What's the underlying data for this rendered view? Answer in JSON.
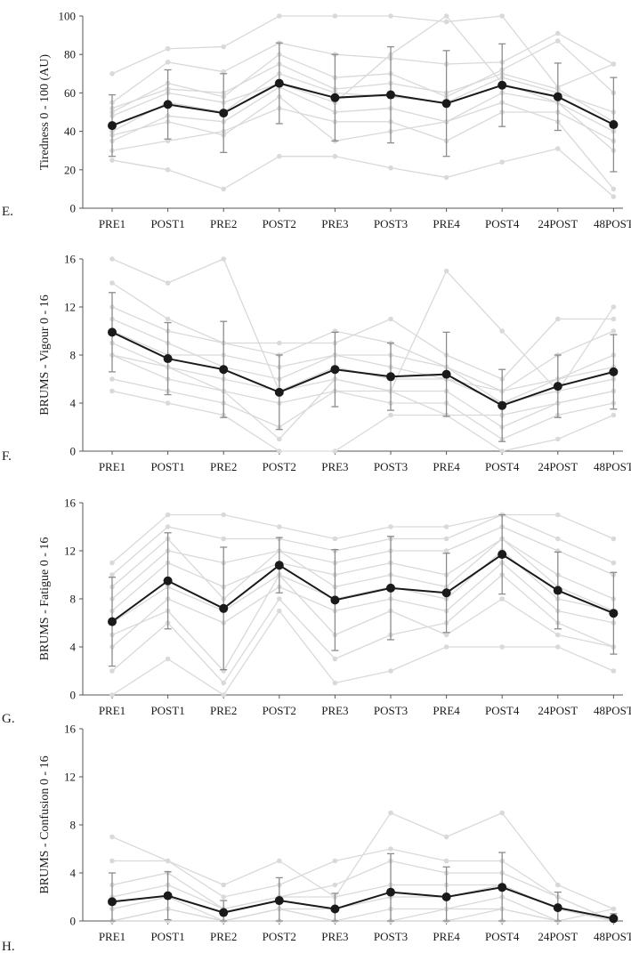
{
  "colors": {
    "individual": "#d9d9d9",
    "mean": "#1a1a1a",
    "error_bar": "#8c8c8c",
    "axis": "#555555"
  },
  "chart_data": [
    {
      "type": "line",
      "panel_label": "E.",
      "ylabel": "Tiredness 0 - 100 (AU)",
      "ylim": [
        0,
        100
      ],
      "yticks": [
        0,
        20,
        40,
        60,
        80,
        100
      ],
      "categories": [
        "PRE1",
        "POST1",
        "PRE2",
        "POST2",
        "PRE3",
        "POST3",
        "PRE4",
        "POST4",
        "24POST",
        "48POST"
      ],
      "mean": [
        43,
        54,
        49.5,
        65,
        57.5,
        59,
        54.5,
        64,
        58,
        43.5
      ],
      "sd": [
        16,
        18,
        20.5,
        21,
        22.5,
        25,
        27.5,
        21.5,
        17.5,
        24.5
      ],
      "individuals": [
        [
          70,
          83,
          84,
          100,
          100,
          100,
          97,
          100,
          63,
          75
        ],
        [
          55,
          76,
          71,
          86,
          80,
          78,
          75,
          76,
          91,
          75
        ],
        [
          50,
          65,
          58,
          80,
          68,
          70,
          58,
          72,
          87,
          60
        ],
        [
          40,
          55,
          50,
          70,
          60,
          58,
          55,
          68,
          60,
          50
        ],
        [
          35,
          48,
          45,
          63,
          50,
          52,
          45,
          60,
          55,
          40
        ],
        [
          30,
          35,
          40,
          52,
          45,
          45,
          35,
          50,
          50,
          35
        ],
        [
          25,
          20,
          10,
          27,
          27,
          21,
          16,
          24,
          31,
          6
        ],
        [
          48,
          60,
          55,
          65,
          55,
          80,
          100,
          65,
          55,
          30
        ],
        [
          38,
          45,
          38,
          58,
          35,
          40,
          45,
          55,
          45,
          10
        ],
        [
          52,
          62,
          60,
          75,
          62,
          65,
          60,
          70,
          62,
          45
        ]
      ]
    },
    {
      "type": "line",
      "panel_label": "F.",
      "ylabel": "BRUMS - Vigour 0 - 16",
      "ylim": [
        0,
        16
      ],
      "yticks": [
        0,
        4,
        8,
        12,
        16
      ],
      "categories": [
        "PRE1",
        "POST1",
        "PRE2",
        "POST2",
        "PRE3",
        "POST3",
        "PRE4",
        "POST4",
        "24POST",
        "48POST"
      ],
      "mean": [
        9.9,
        7.7,
        6.8,
        4.9,
        6.8,
        6.2,
        6.4,
        3.8,
        5.4,
        6.6
      ],
      "sd": [
        3.3,
        3,
        4,
        3.1,
        3.1,
        2.8,
        3.5,
        3,
        2.6,
        3.1
      ],
      "individuals": [
        [
          16,
          14,
          16,
          5,
          6,
          5,
          15,
          10,
          5,
          12
        ],
        [
          14,
          11,
          9,
          9,
          9,
          11,
          8,
          6,
          11,
          11
        ],
        [
          12,
          10,
          9,
          8,
          10,
          9,
          7,
          5,
          8,
          10
        ],
        [
          10,
          8,
          8,
          7,
          8,
          7,
          6,
          5,
          6,
          8
        ],
        [
          9,
          7,
          6,
          5,
          7,
          6,
          6,
          4,
          5,
          6
        ],
        [
          8,
          6,
          5,
          4,
          5,
          5,
          5,
          2,
          4,
          5
        ],
        [
          6,
          5,
          4,
          2,
          5,
          4,
          4,
          1,
          3,
          4
        ],
        [
          5,
          4,
          3,
          0,
          0,
          3,
          3,
          0,
          1,
          3
        ],
        [
          11,
          9,
          7,
          6,
          8,
          8,
          7,
          4,
          6,
          7
        ],
        [
          8,
          7,
          5,
          1,
          6,
          5,
          3,
          3,
          4,
          5
        ]
      ]
    },
    {
      "type": "line",
      "panel_label": "G.",
      "ylabel": "BRUMS - Fatigue 0 - 16",
      "ylim": [
        0,
        16
      ],
      "yticks": [
        0,
        4,
        8,
        12,
        16
      ],
      "categories": [
        "PRE1",
        "POST1",
        "PRE2",
        "POST2",
        "PRE3",
        "POST3",
        "PRE4",
        "POST4",
        "24POST",
        "48POST"
      ],
      "mean": [
        6.1,
        9.5,
        7.2,
        10.8,
        7.9,
        8.9,
        8.5,
        11.7,
        8.7,
        6.8
      ],
      "sd": [
        3.7,
        4,
        5.1,
        2.3,
        4.2,
        4.3,
        3.3,
        3.3,
        3.2,
        3.4
      ],
      "individuals": [
        [
          11,
          15,
          15,
          14,
          13,
          14,
          14,
          15,
          15,
          13
        ],
        [
          10,
          14,
          13,
          13,
          12,
          13,
          13,
          15,
          13,
          11
        ],
        [
          8,
          12,
          11,
          12,
          11,
          12,
          12,
          14,
          12,
          10
        ],
        [
          7,
          11,
          9,
          11,
          10,
          11,
          10,
          13,
          10,
          8
        ],
        [
          6,
          9,
          7,
          10,
          8,
          9,
          8,
          12,
          8,
          7
        ],
        [
          4,
          8,
          6,
          9,
          7,
          8,
          7,
          11,
          7,
          6
        ],
        [
          2,
          6,
          1,
          8,
          3,
          5,
          6,
          10,
          6,
          4
        ],
        [
          0,
          3,
          0,
          7,
          1,
          2,
          4,
          4,
          4,
          2
        ],
        [
          5,
          7,
          2,
          10,
          5,
          7,
          5,
          8,
          5,
          4
        ],
        [
          9,
          13,
          8,
          12,
          9,
          10,
          9,
          13,
          9,
          7
        ]
      ]
    },
    {
      "type": "line",
      "panel_label": "H.",
      "ylabel": "BRUMS - Confusion 0 - 16",
      "ylim": [
        0,
        16
      ],
      "yticks": [
        0,
        4,
        8,
        12,
        16
      ],
      "categories": [
        "PRE1",
        "POST1",
        "PRE2",
        "POST2",
        "PRE3",
        "POST3",
        "PRE4",
        "POST4",
        "24POST",
        "48POST"
      ],
      "mean": [
        1.6,
        2.1,
        0.7,
        1.7,
        1,
        2.4,
        2,
        2.8,
        1.1,
        0.2
      ],
      "sd": [
        2.4,
        2,
        1,
        1.9,
        1.3,
        3.2,
        2.5,
        2.9,
        1.3,
        0.4
      ],
      "individuals": [
        [
          7,
          5,
          3,
          5,
          2,
          9,
          7,
          9,
          3,
          1
        ],
        [
          5,
          5,
          2,
          3,
          5,
          6,
          5,
          5,
          2,
          0
        ],
        [
          3,
          4,
          1,
          2,
          3,
          5,
          4,
          4,
          2,
          0
        ],
        [
          2,
          3,
          1,
          2,
          2,
          3,
          3,
          3,
          1,
          0
        ],
        [
          1,
          2,
          0,
          1,
          1,
          2,
          2,
          3,
          1,
          0
        ],
        [
          0,
          1,
          0,
          1,
          0,
          1,
          1,
          2,
          0,
          0
        ],
        [
          0,
          0,
          0,
          0,
          0,
          0,
          0,
          1,
          0,
          0
        ],
        [
          0,
          1,
          0,
          1,
          0,
          0,
          1,
          1,
          0,
          1
        ],
        [
          0,
          0,
          0,
          0,
          0,
          0,
          0,
          0,
          0,
          0
        ],
        [
          0,
          0,
          0,
          0,
          0,
          0,
          0,
          0,
          0,
          0
        ]
      ]
    }
  ]
}
